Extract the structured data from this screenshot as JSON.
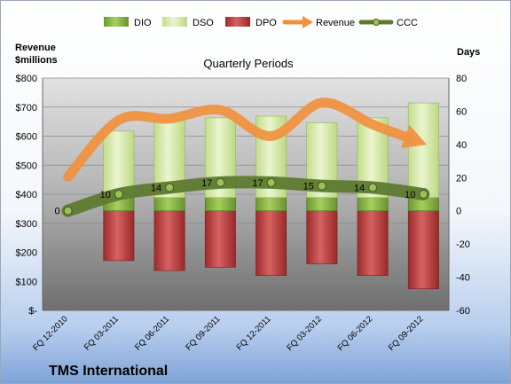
{
  "chart_data": {
    "type": "bar",
    "title": "Quarterly Periods",
    "company": "TMS International",
    "left_axis_label_1": "Revenue",
    "left_axis_label_2": "$millions",
    "right_axis_label": "Days",
    "left_ticks": [
      "$-",
      "$100",
      "$200",
      "$300",
      "$400",
      "$500",
      "$600",
      "$700",
      "$800"
    ],
    "right_ticks": [
      "-60",
      "-40",
      "-20",
      "0",
      "20",
      "40",
      "60",
      "80"
    ],
    "left_range": [
      0,
      800
    ],
    "right_range": [
      -60,
      80
    ],
    "categories": [
      "FQ 12-2010",
      "FQ 03-2011",
      "FQ 06-2011",
      "FQ 09-2011",
      "FQ 12-2011",
      "FQ 03-2012",
      "FQ 06-2012",
      "FQ 09-2012"
    ],
    "legend_position": "top",
    "series": [
      {
        "name": "DIO",
        "axis": "right",
        "color": "#7da83a",
        "values": [
          null,
          8,
          8,
          8,
          8,
          8,
          8,
          8
        ]
      },
      {
        "name": "DSO",
        "axis": "right",
        "color": "#d8ebac",
        "values": [
          null,
          40,
          47,
          48,
          49,
          45,
          48,
          57
        ]
      },
      {
        "name": "DPO",
        "axis": "right",
        "color": "#b8393a",
        "values": [
          null,
          -30,
          -36,
          -34,
          -39,
          -32,
          -39,
          -47
        ]
      },
      {
        "name": "Revenue",
        "axis": "left",
        "color": "#f0913f",
        "values": [
          460,
          655,
          660,
          690,
          600,
          715,
          640,
          575
        ]
      },
      {
        "name": "CCC",
        "axis": "right",
        "color": "#5e7a30",
        "values": [
          0,
          10,
          14,
          17,
          17,
          15,
          14,
          10
        ],
        "labels": [
          "0",
          "10",
          "14",
          "17",
          "17",
          "15",
          "14",
          "10"
        ]
      }
    ]
  }
}
